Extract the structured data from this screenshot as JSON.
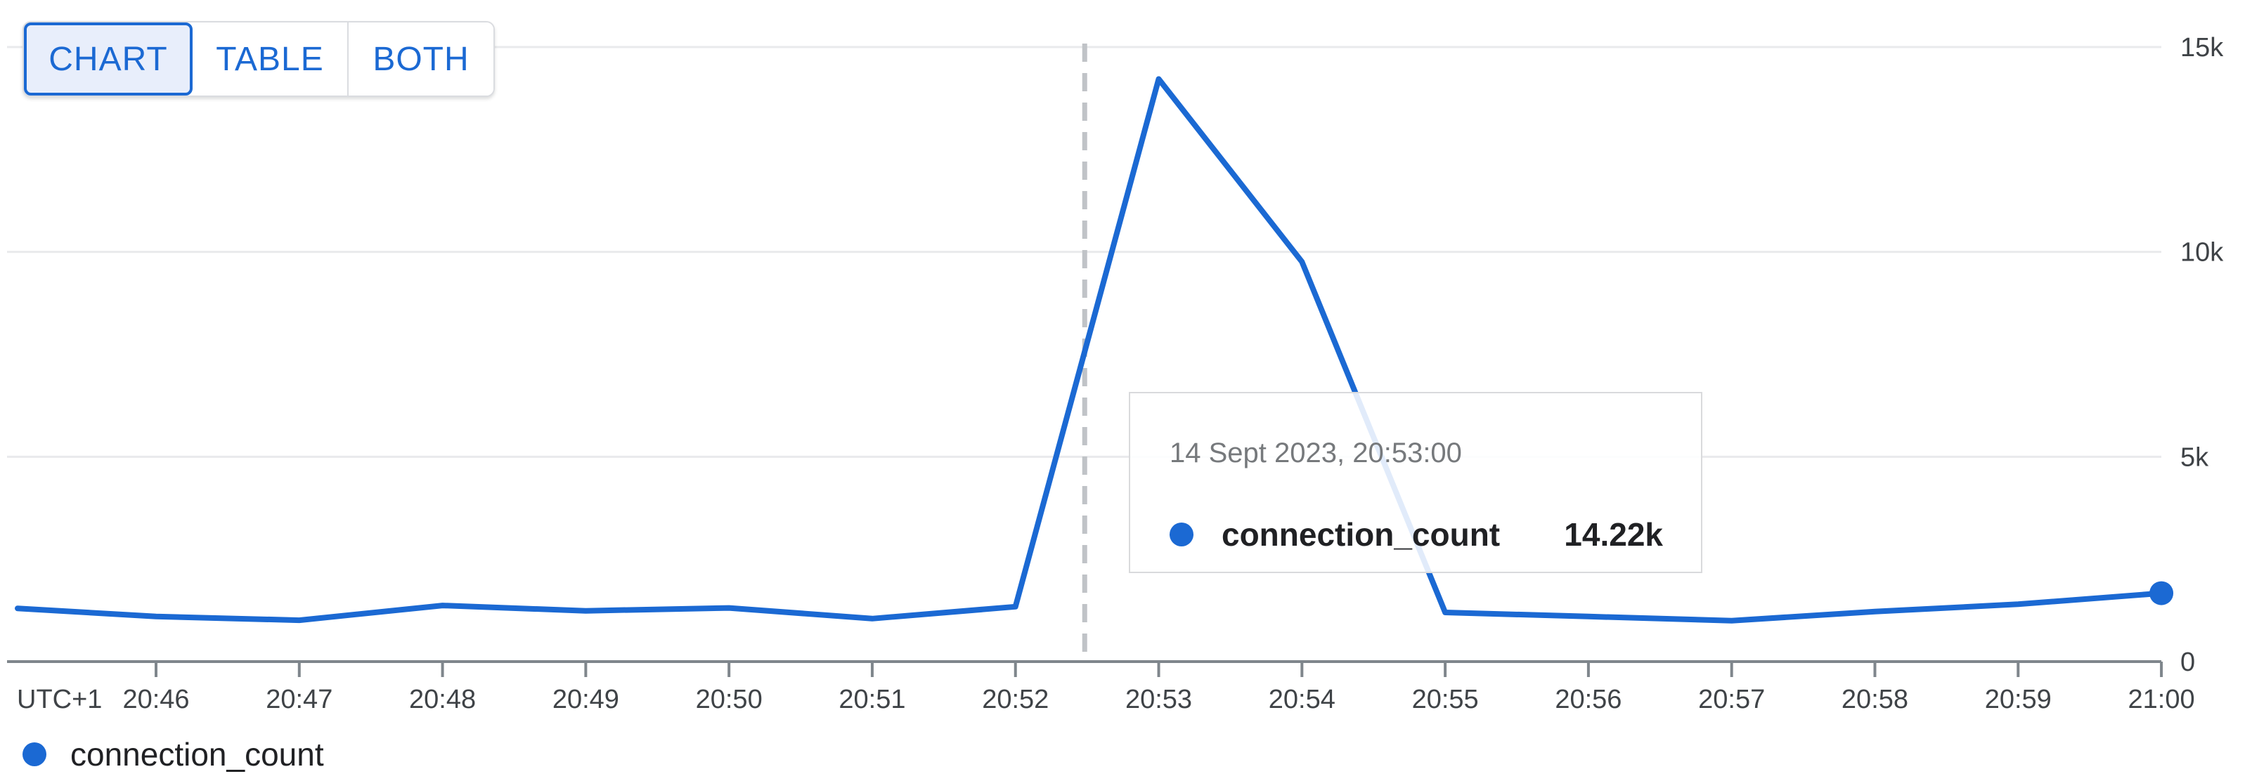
{
  "colors": {
    "accent_blue": "#1b69d3",
    "selected_button_bg": "#e8eefb",
    "button_border_gray": "#dadce0",
    "gridline": "#e9eaec",
    "axis_gray": "#7f868c",
    "axis_label_text": "#3f4347",
    "crosshair_gray": "#c0c3c7",
    "tooltip_border": "#d9dadc",
    "tooltip_date_text": "#76797c",
    "dark_text": "#202124"
  },
  "toolbar": {
    "buttons": [
      {
        "label": "CHART",
        "selected": true
      },
      {
        "label": "TABLE",
        "selected": false
      },
      {
        "label": "BOTH",
        "selected": false
      }
    ]
  },
  "tooltip": {
    "date": "14 Sept 2023, 20:53:00",
    "series": "connection_count",
    "value": "14.22k"
  },
  "legend": {
    "label": "connection_count"
  },
  "chart_data": {
    "type": "line",
    "title": "",
    "xlabel": "",
    "ylabel": "",
    "timezone_label": "UTC+1",
    "x_tick_labels": [
      "20:46",
      "20:47",
      "20:48",
      "20:49",
      "20:50",
      "20:51",
      "20:52",
      "20:53",
      "20:54",
      "20:55",
      "20:56",
      "20:57",
      "20:58",
      "20:59",
      "21:00"
    ],
    "y_ticks": [
      {
        "label": "15k",
        "value": 15000
      },
      {
        "label": "10k",
        "value": 10000
      },
      {
        "label": "5k",
        "value": 5000
      },
      {
        "label": "0",
        "value": 0
      }
    ],
    "ylim": [
      0,
      15000
    ],
    "grid": true,
    "legend_position": "bottom-left",
    "crosshair_time": "20:52:29",
    "series": [
      {
        "name": "connection_count",
        "color": "#1b69d3",
        "end_point_marker": true,
        "points": [
          {
            "time": "20:45:02",
            "value": 1300
          },
          {
            "time": "20:46:00",
            "value": 1100
          },
          {
            "time": "20:47:00",
            "value": 1010
          },
          {
            "time": "20:48:00",
            "value": 1370
          },
          {
            "time": "20:49:00",
            "value": 1240
          },
          {
            "time": "20:50:00",
            "value": 1310
          },
          {
            "time": "20:51:00",
            "value": 1050
          },
          {
            "time": "20:52:00",
            "value": 1340
          },
          {
            "time": "20:53:00",
            "value": 14220
          },
          {
            "time": "20:54:00",
            "value": 9760
          },
          {
            "time": "20:55:00",
            "value": 1200
          },
          {
            "time": "20:56:00",
            "value": 1100
          },
          {
            "time": "20:57:00",
            "value": 1000
          },
          {
            "time": "20:58:00",
            "value": 1220
          },
          {
            "time": "20:59:00",
            "value": 1400
          },
          {
            "time": "21:00:00",
            "value": 1670
          }
        ]
      }
    ]
  }
}
